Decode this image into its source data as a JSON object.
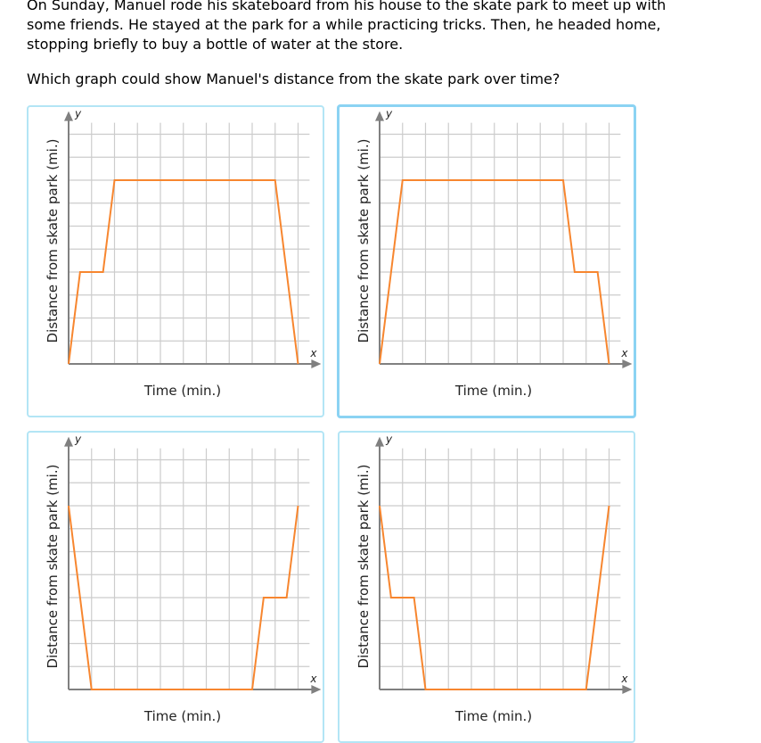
{
  "prompt": {
    "text": "On Sunday, Manuel rode his skateboard from his house to the skate park to meet up with some friends. He stayed at the park for a while practicing tricks. Then, he headed home, stopping briefly to buy a bottle of water at the store.",
    "question": "Which graph could show Manuel's distance from the skate park over time?"
  },
  "colors": {
    "line": "#f7862f",
    "grid": "#cccccc",
    "axis": "#808080",
    "card_border": "#b3e5f5",
    "selected_border": "#8bd3f3"
  },
  "chart_data": [
    {
      "type": "line",
      "xlabel": "Time (min.)",
      "ylabel": "Distance from skate park (mi.)",
      "x_axis_letter": "x",
      "y_axis_letter": "y",
      "xlim": [
        0,
        10.5
      ],
      "ylim": [
        0,
        10.5
      ],
      "grid": true,
      "selected": false,
      "points": [
        [
          0,
          0
        ],
        [
          0.5,
          4
        ],
        [
          1.5,
          4
        ],
        [
          2,
          8
        ],
        [
          9,
          8
        ],
        [
          10,
          0
        ]
      ]
    },
    {
      "type": "line",
      "xlabel": "Time (min.)",
      "ylabel": "Distance from skate park (mi.)",
      "x_axis_letter": "x",
      "y_axis_letter": "y",
      "xlim": [
        0,
        10.5
      ],
      "ylim": [
        0,
        10.5
      ],
      "grid": true,
      "selected": true,
      "points": [
        [
          0,
          0
        ],
        [
          1,
          8
        ],
        [
          8,
          8
        ],
        [
          8.5,
          4
        ],
        [
          9.5,
          4
        ],
        [
          10,
          0
        ]
      ]
    },
    {
      "type": "line",
      "xlabel": "Time (min.)",
      "ylabel": "Distance from skate park (mi.)",
      "x_axis_letter": "x",
      "y_axis_letter": "y",
      "xlim": [
        0,
        10.5
      ],
      "ylim": [
        0,
        10.5
      ],
      "grid": true,
      "selected": false,
      "points": [
        [
          0,
          8
        ],
        [
          1,
          0
        ],
        [
          8,
          0
        ],
        [
          8.5,
          4
        ],
        [
          9.5,
          4
        ],
        [
          10,
          8
        ]
      ]
    },
    {
      "type": "line",
      "xlabel": "Time (min.)",
      "ylabel": "Distance from skate park (mi.)",
      "x_axis_letter": "x",
      "y_axis_letter": "y",
      "xlim": [
        0,
        10.5
      ],
      "ylim": [
        0,
        10.5
      ],
      "grid": true,
      "selected": false,
      "points": [
        [
          0,
          8
        ],
        [
          0.5,
          4
        ],
        [
          1.5,
          4
        ],
        [
          2,
          0
        ],
        [
          9,
          0
        ],
        [
          10,
          8
        ]
      ]
    }
  ]
}
